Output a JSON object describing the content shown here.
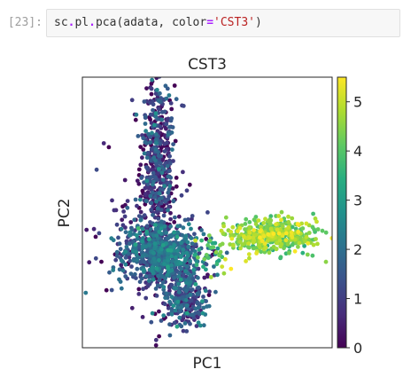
{
  "cell": {
    "prompt": "[23]:",
    "code_tokens": [
      {
        "text": "sc",
        "kind": "plain"
      },
      {
        "text": ".",
        "kind": "op"
      },
      {
        "text": "pl",
        "kind": "plain"
      },
      {
        "text": ".",
        "kind": "op"
      },
      {
        "text": "pca",
        "kind": "plain"
      },
      {
        "text": "(adata, color",
        "kind": "plain"
      },
      {
        "text": "=",
        "kind": "op"
      },
      {
        "text": "'CST3'",
        "kind": "str"
      },
      {
        "text": ")",
        "kind": "plain"
      }
    ]
  },
  "chart_data": {
    "type": "scatter",
    "title": "CST3",
    "xlabel": "PC1",
    "ylabel": "PC2",
    "colorbar": {
      "colormap": "viridis",
      "range": [
        0,
        5.5
      ],
      "ticks": [
        "0",
        "1",
        "2",
        "3",
        "4",
        "5"
      ]
    },
    "clusters": [
      {
        "name": "upper-left arm",
        "cx": 0.3,
        "cy": 0.68,
        "sx": 0.035,
        "sy": 0.16,
        "n": 500,
        "value_mean": 0.8,
        "value_sd": 0.8
      },
      {
        "name": "dense center",
        "cx": 0.32,
        "cy": 0.35,
        "sx": 0.08,
        "sy": 0.055,
        "n": 700,
        "value_mean": 1.7,
        "value_sd": 0.6
      },
      {
        "name": "lower-center blob",
        "cx": 0.41,
        "cy": 0.19,
        "sx": 0.05,
        "sy": 0.055,
        "n": 280,
        "value_mean": 1.2,
        "value_sd": 0.7
      },
      {
        "name": "scattered outliers",
        "cx": 0.24,
        "cy": 0.4,
        "sx": 0.12,
        "sy": 0.17,
        "n": 110,
        "value_mean": 0.4,
        "value_sd": 0.5
      },
      {
        "name": "right band",
        "cx": 0.76,
        "cy": 0.41,
        "sx": 0.09,
        "sy": 0.03,
        "n": 450,
        "value_mean": 4.4,
        "value_sd": 0.5
      },
      {
        "name": "bridge",
        "cx": 0.53,
        "cy": 0.35,
        "sx": 0.04,
        "sy": 0.03,
        "n": 40,
        "value_mean": 3.5,
        "value_sd": 1.0
      }
    ]
  }
}
